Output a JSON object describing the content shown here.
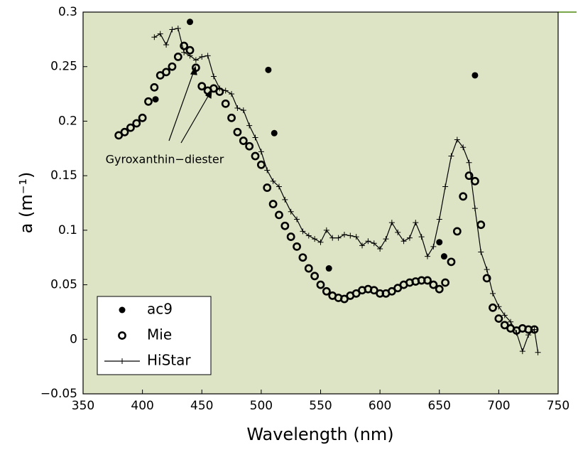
{
  "chart_data": {
    "type": "scatter",
    "xlabel": "Wavelength (nm)",
    "ylabel": "a (m⁻¹)",
    "annotation": "Gyroxanthin−diester",
    "xlim": [
      350,
      750
    ],
    "xticks": [
      350,
      400,
      450,
      500,
      550,
      600,
      650,
      700,
      750
    ],
    "ylim": [
      -0.05,
      0.3
    ],
    "yticks": [
      {
        "value": -0.05,
        "label": "−0.05"
      },
      0,
      0.05,
      0.1,
      0.15,
      0.2,
      0.25,
      0.3
    ],
    "background": "#dde4c5",
    "legend": "lower-left",
    "series": [
      {
        "name": "ac9",
        "style": "dot",
        "color": "#000000",
        "x": [
          411,
          440,
          506,
          511,
          557,
          650,
          654,
          680
        ],
        "values": [
          0.22,
          0.291,
          0.247,
          0.189,
          0.065,
          0.089,
          0.076,
          0.242
        ]
      },
      {
        "name": "Mie",
        "style": "ring",
        "color": "#000000",
        "x": [
          380,
          385,
          390,
          395,
          400,
          405,
          410,
          415,
          420,
          425,
          430,
          435,
          440,
          445,
          450,
          455,
          460,
          465,
          470,
          475,
          480,
          485,
          490,
          495,
          500,
          505,
          510,
          515,
          520,
          525,
          530,
          535,
          540,
          545,
          550,
          555,
          560,
          565,
          570,
          575,
          580,
          585,
          590,
          595,
          600,
          605,
          610,
          615,
          620,
          625,
          630,
          635,
          640,
          645,
          650,
          655,
          660,
          665,
          670,
          675,
          680,
          685,
          690,
          695,
          700,
          705,
          710,
          715,
          720,
          725,
          730
        ],
        "values": [
          0.187,
          0.19,
          0.194,
          0.198,
          0.203,
          0.218,
          0.231,
          0.242,
          0.245,
          0.25,
          0.259,
          0.269,
          0.265,
          0.249,
          0.232,
          0.228,
          0.23,
          0.227,
          0.216,
          0.203,
          0.19,
          0.182,
          0.177,
          0.168,
          0.16,
          0.139,
          0.124,
          0.114,
          0.104,
          0.094,
          0.085,
          0.075,
          0.065,
          0.058,
          0.05,
          0.044,
          0.04,
          0.038,
          0.037,
          0.04,
          0.042,
          0.045,
          0.046,
          0.045,
          0.042,
          0.042,
          0.044,
          0.047,
          0.05,
          0.052,
          0.053,
          0.054,
          0.054,
          0.05,
          0.046,
          0.052,
          0.071,
          0.099,
          0.131,
          0.15,
          0.145,
          0.105,
          0.056,
          0.029,
          0.019,
          0.013,
          0.01,
          0.008,
          0.01,
          0.009,
          0.009
        ]
      },
      {
        "name": "HiStar",
        "style": "line-plus",
        "color": "#000000",
        "x": [
          410,
          415,
          420,
          425,
          430,
          435,
          440,
          445,
          450,
          455,
          460,
          465,
          470,
          475,
          480,
          485,
          490,
          495,
          500,
          505,
          510,
          515,
          520,
          525,
          530,
          535,
          540,
          545,
          550,
          555,
          560,
          565,
          570,
          575,
          580,
          585,
          590,
          595,
          600,
          605,
          610,
          615,
          620,
          625,
          630,
          635,
          640,
          645,
          650,
          655,
          660,
          665,
          670,
          675,
          680,
          685,
          690,
          695,
          700,
          705,
          710,
          715,
          720,
          725,
          730,
          733
        ],
        "values": [
          0.277,
          0.28,
          0.27,
          0.284,
          0.285,
          0.263,
          0.26,
          0.256,
          0.259,
          0.26,
          0.241,
          0.23,
          0.228,
          0.225,
          0.212,
          0.21,
          0.196,
          0.185,
          0.172,
          0.155,
          0.145,
          0.14,
          0.128,
          0.117,
          0.11,
          0.099,
          0.095,
          0.092,
          0.089,
          0.1,
          0.093,
          0.093,
          0.096,
          0.095,
          0.094,
          0.086,
          0.09,
          0.088,
          0.083,
          0.092,
          0.107,
          0.098,
          0.09,
          0.093,
          0.107,
          0.094,
          0.076,
          0.085,
          0.11,
          0.14,
          0.168,
          0.183,
          0.176,
          0.162,
          0.12,
          0.08,
          0.064,
          0.042,
          0.03,
          0.022,
          0.016,
          0.006,
          -0.011,
          0.004,
          0.009,
          -0.012
        ]
      }
    ]
  }
}
